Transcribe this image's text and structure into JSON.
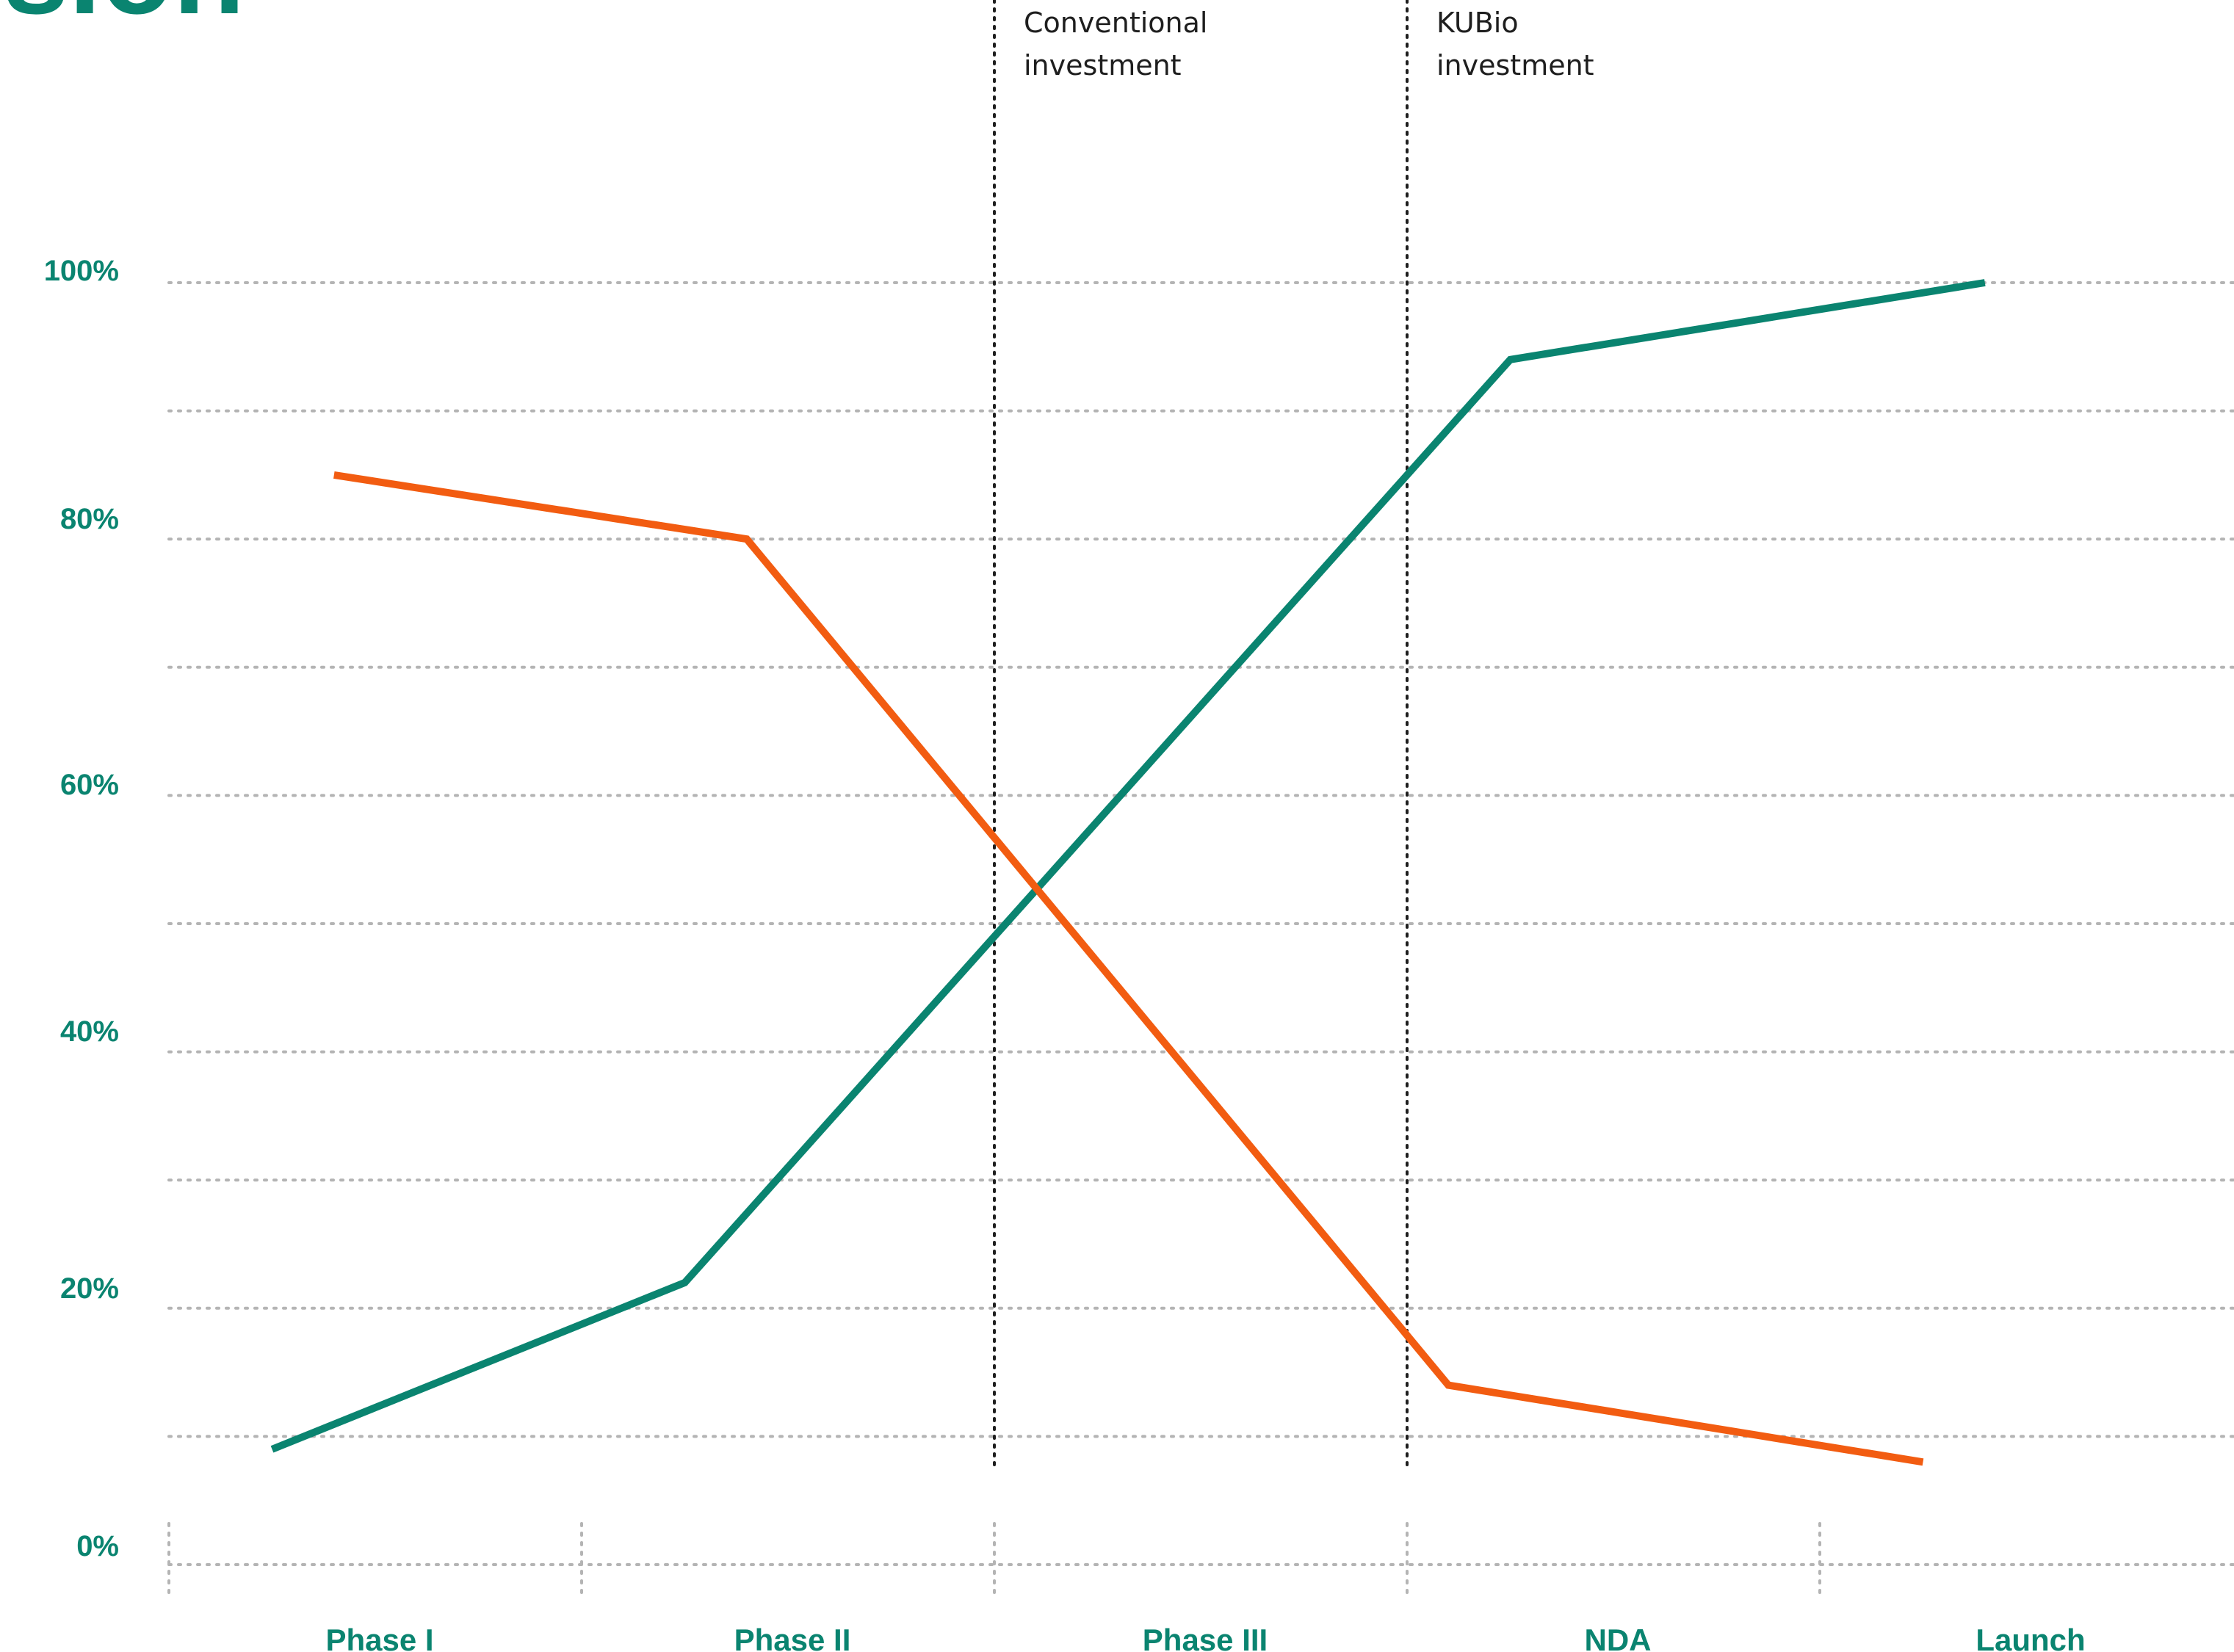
{
  "colors": {
    "teal": "#0a8470",
    "orange": "#f25c11",
    "grid": "#b4b4b4",
    "divider": "#1e1e1e"
  },
  "title_fragment": "ision",
  "annotations": [
    {
      "x_after": "Phase II",
      "lines": [
        "Conventional",
        "investment"
      ]
    },
    {
      "x_after": "Phase III",
      "lines": [
        "KUBio",
        "investment"
      ]
    }
  ],
  "chart_data": {
    "type": "line",
    "categories": [
      "Phase I",
      "Phase II",
      "Phase III",
      "NDA",
      "Launch"
    ],
    "y_tick_labels": [
      "100%",
      "80%",
      "60%",
      "40%",
      "20%",
      "0%"
    ],
    "ylim": [
      0,
      100
    ],
    "grid": true,
    "series": [
      {
        "color": "#0a8470",
        "points": [
          {
            "x": 0.25,
            "y": 9
          },
          {
            "x": 1.25,
            "y": 22
          },
          {
            "x": 3.25,
            "y": 94
          },
          {
            "x": 4.4,
            "y": 100
          }
        ]
      },
      {
        "color": "#f25c11",
        "points": [
          {
            "x": 0.4,
            "y": 85
          },
          {
            "x": 1.4,
            "y": 80
          },
          {
            "x": 3.1,
            "y": 14
          },
          {
            "x": 4.25,
            "y": 8
          }
        ]
      }
    ]
  }
}
